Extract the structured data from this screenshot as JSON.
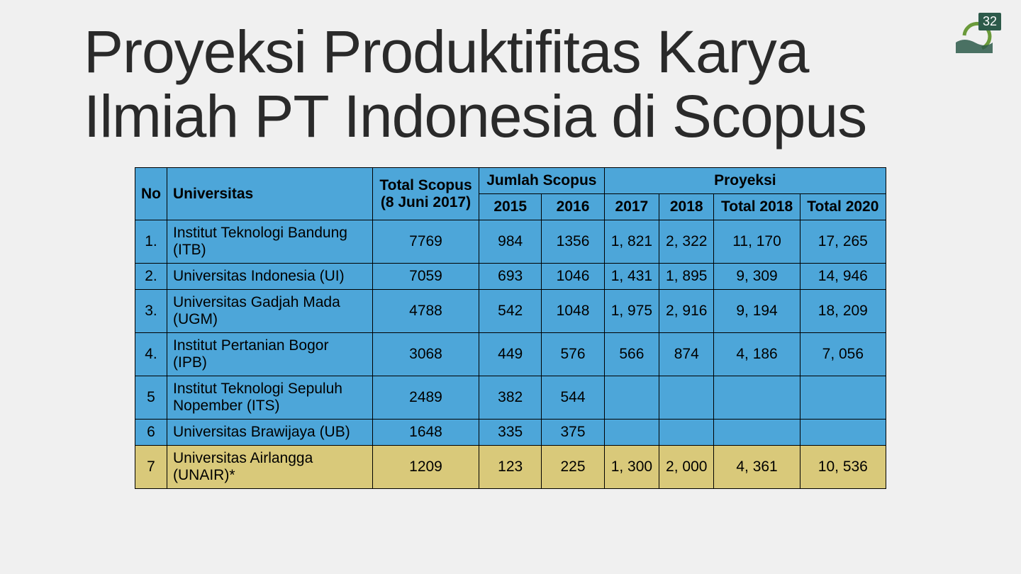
{
  "page_number": "32",
  "title": "Proyeksi Produktifitas Karya Ilmiah PT Indonesia di Scopus",
  "colors": {
    "background": "#f0f0f0",
    "text": "#2a2a2a",
    "header_bg": "#4da6d9",
    "row_blue": "#4da6d9",
    "row_yellow": "#d9c97a",
    "border": "#000000",
    "badge_green": "#6a9a3a",
    "badge_dark": "#2d5a4a"
  },
  "table": {
    "type": "table",
    "font_size": 21,
    "header_font_weight": 700,
    "columns": {
      "no": "No",
      "univ": "Universitas",
      "total": "Total Scopus (8 Juni 2017)",
      "group_jumlah": "Jumlah Scopus",
      "group_proyeksi": "Proyeksi",
      "y2015": "2015",
      "y2016": "2016",
      "y2017": "2017",
      "y2018": "2018",
      "t2018": "Total 2018",
      "t2020": "Total 2020"
    },
    "rows": [
      {
        "highlight": false,
        "no": "1.",
        "univ": "Institut Teknologi Bandung (ITB)",
        "total": "7769",
        "y2015": "984",
        "y2016": "1356",
        "y2017": "1, 821",
        "y2018": "2, 322",
        "t2018": "11, 170",
        "t2020": "17, 265"
      },
      {
        "highlight": false,
        "no": "2.",
        "univ": "Universitas Indonesia (UI)",
        "total": "7059",
        "y2015": "693",
        "y2016": "1046",
        "y2017": "1, 431",
        "y2018": "1, 895",
        "t2018": "9, 309",
        "t2020": "14, 946"
      },
      {
        "highlight": false,
        "no": "3.",
        "univ": "Universitas Gadjah Mada (UGM)",
        "total": "4788",
        "y2015": "542",
        "y2016": "1048",
        "y2017": "1, 975",
        "y2018": "2, 916",
        "t2018": "9, 194",
        "t2020": "18, 209"
      },
      {
        "highlight": false,
        "no": "4.",
        "univ": "Institut Pertanian Bogor (IPB)",
        "total": "3068",
        "y2015": "449",
        "y2016": "576",
        "y2017": "566",
        "y2018": "874",
        "t2018": "4, 186",
        "t2020": "7, 056"
      },
      {
        "highlight": false,
        "no": "5",
        "univ": "Institut Teknologi Sepuluh Nopember (ITS)",
        "total": "2489",
        "y2015": "382",
        "y2016": "544",
        "y2017": "",
        "y2018": "",
        "t2018": "",
        "t2020": ""
      },
      {
        "highlight": false,
        "no": "6",
        "univ": "Universitas Brawijaya (UB)",
        "total": "1648",
        "y2015": "335",
        "y2016": "375",
        "y2017": "",
        "y2018": "",
        "t2018": "",
        "t2020": ""
      },
      {
        "highlight": true,
        "no": "7",
        "univ": "Universitas Airlangga (UNAIR)*",
        "total": "1209",
        "y2015": "123",
        "y2016": "225",
        "y2017": "1, 300",
        "y2018": "2, 000",
        "t2018": "4, 361",
        "t2020": "10, 536"
      }
    ]
  }
}
